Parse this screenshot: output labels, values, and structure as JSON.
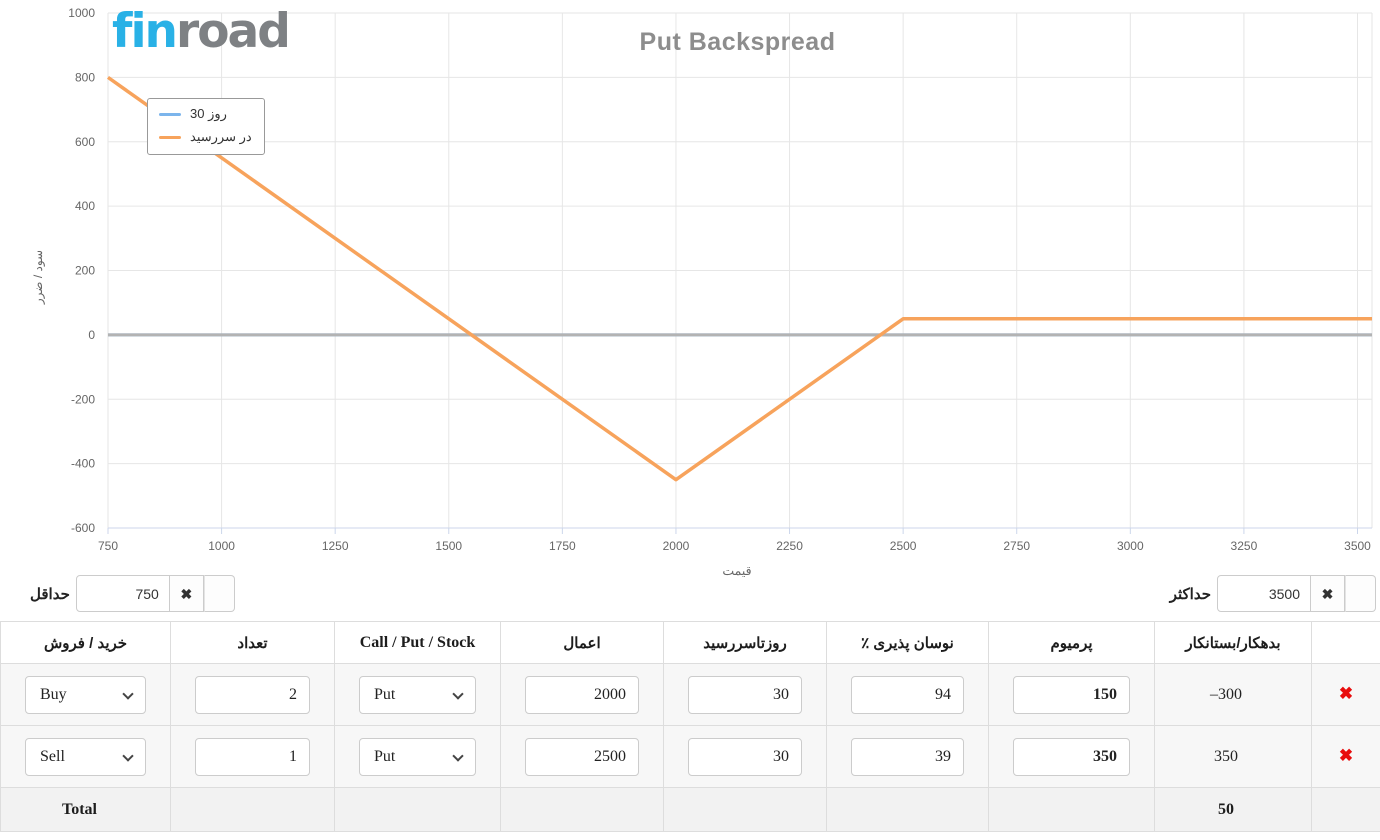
{
  "logo": {
    "part1": "fin",
    "part2": "road"
  },
  "chart": {
    "title": "Put Backspread",
    "y_axis_title": "سود / ضرر",
    "x_axis_title": "قیمت",
    "legend": [
      {
        "label": "30 روز",
        "color": "#7cb5ec"
      },
      {
        "label": "در سررسید",
        "color": "#f7a35c"
      }
    ]
  },
  "chart_data": {
    "type": "line",
    "title": "Put Backspread",
    "xlabel": "قیمت",
    "ylabel": "سود / ضرر",
    "x_ticks": [
      750,
      1000,
      1250,
      1500,
      1750,
      2000,
      2250,
      2500,
      2750,
      3000,
      3250,
      3500
    ],
    "y_ticks": [
      -600,
      -400,
      -200,
      0,
      200,
      400,
      600,
      800,
      1000
    ],
    "xlim": [
      750,
      3500
    ],
    "ylim": [
      -600,
      1000
    ],
    "grid": true,
    "legend_position": "top-left",
    "series": [
      {
        "name": "30 روز",
        "color": "#7cb5ec",
        "points": [
          [
            750,
            0
          ],
          [
            3500,
            0
          ]
        ]
      },
      {
        "name": "در سررسید",
        "color": "#f7a35c",
        "points": [
          [
            750,
            800
          ],
          [
            2000,
            -450
          ],
          [
            2500,
            50
          ],
          [
            3500,
            50
          ]
        ]
      }
    ],
    "zero_line": {
      "value": 0,
      "color": "#b3b3b3"
    },
    "colors": {
      "grid": "#e6e6e6",
      "axis_line": "#ccd6eb",
      "tick_label": "#666666"
    }
  },
  "controls": {
    "min": {
      "label": "حداقل",
      "value": "750"
    },
    "max": {
      "label": "حداکثر",
      "value": "3500"
    }
  },
  "icons": {
    "clear": "✖",
    "delete": "✖"
  },
  "table": {
    "headers": [
      "خرید / فروش",
      "تعداد",
      "Call / Put / Stock",
      "اعمال",
      "روزتاسررسید",
      "نوسان پذیری ٪",
      "پرمیوم",
      "بدهکار/بستانکار",
      ""
    ],
    "rows": [
      {
        "side": "Buy",
        "qty": "2",
        "type": "Put",
        "strike": "2000",
        "days": "30",
        "vol": "94",
        "premium": "150",
        "net": "–300"
      },
      {
        "side": "Sell",
        "qty": "1",
        "type": "Put",
        "strike": "2500",
        "days": "30",
        "vol": "39",
        "premium": "350",
        "net": "350"
      }
    ],
    "total_label": "Total",
    "total_value": "50"
  }
}
